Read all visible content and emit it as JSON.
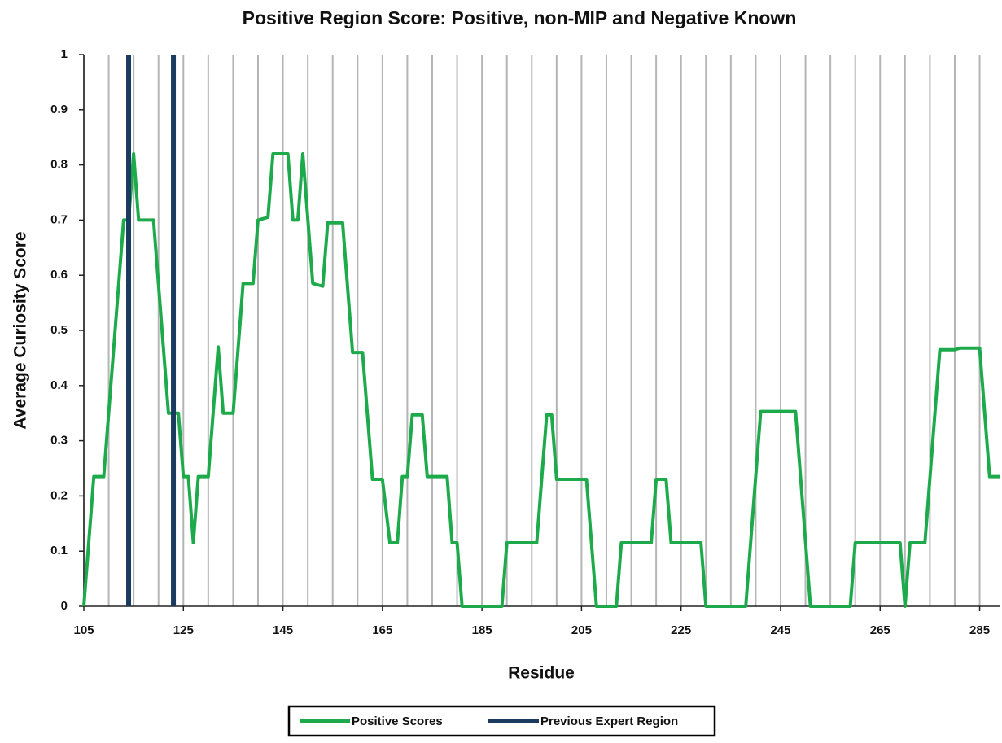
{
  "chart_data": {
    "type": "line",
    "title": "Positive Region Score: Positive, non-MIP and Negative Known",
    "x_label": "Residue",
    "y_label": "Average Curiosity Score",
    "xlim": [
      105,
      289
    ],
    "xticks": [
      105,
      125,
      145,
      165,
      185,
      205,
      225,
      245,
      265,
      285
    ],
    "x_grid": [
      105,
      110,
      115,
      120,
      125,
      130,
      135,
      140,
      145,
      150,
      155,
      160,
      165,
      170,
      175,
      180,
      185,
      190,
      195,
      200,
      205,
      210,
      215,
      220,
      225,
      230,
      235,
      240,
      245,
      250,
      255,
      260,
      265,
      270,
      275,
      280,
      285
    ],
    "ylim": [
      0,
      1
    ],
    "yticks": [
      0,
      0.1,
      0.2,
      0.3,
      0.4,
      0.5,
      0.6,
      0.7,
      0.8,
      0.9,
      1
    ],
    "grid": true,
    "legend": "bottom",
    "series": [
      {
        "name": "Positive Scores",
        "color": "#1daa4b",
        "x": [
          105,
          107,
          109,
          113,
          114,
          115,
          116,
          119,
          122,
          124,
          125,
          126,
          127,
          128,
          130,
          132,
          133,
          135,
          137,
          139,
          140,
          142,
          143,
          146,
          147,
          148,
          149,
          151,
          153,
          154,
          157,
          159,
          161,
          163,
          165,
          166.5,
          168,
          169,
          170,
          171,
          173,
          174,
          178,
          179,
          180,
          181,
          189,
          190,
          196,
          198,
          199,
          200,
          206,
          208,
          212,
          213,
          219,
          220,
          222,
          223,
          229,
          230,
          238,
          241,
          248,
          251,
          259,
          260,
          269,
          270,
          271,
          274,
          277,
          280,
          281,
          285,
          287,
          289
        ],
        "values": [
          0,
          0.235,
          0.235,
          0.7,
          0.7,
          0.82,
          0.7,
          0.7,
          0.35,
          0.35,
          0.235,
          0.235,
          0.115,
          0.235,
          0.235,
          0.47,
          0.35,
          0.35,
          0.585,
          0.585,
          0.7,
          0.705,
          0.82,
          0.82,
          0.7,
          0.7,
          0.82,
          0.585,
          0.58,
          0.695,
          0.695,
          0.46,
          0.46,
          0.23,
          0.23,
          0.115,
          0.115,
          0.235,
          0.235,
          0.347,
          0.347,
          0.235,
          0.235,
          0.115,
          0.115,
          0,
          0,
          0.115,
          0.115,
          0.347,
          0.347,
          0.23,
          0.23,
          0,
          0,
          0.115,
          0.115,
          0.23,
          0.23,
          0.115,
          0.115,
          0,
          0,
          0.353,
          0.353,
          0,
          0,
          0.115,
          0.115,
          0,
          0.115,
          0.115,
          0.465,
          0.465,
          0.468,
          0.468,
          0.235,
          0.235
        ]
      },
      {
        "name": "Previous Expert Region",
        "color": "#1b3a60",
        "x": [
          114,
          114,
          null,
          123,
          123
        ],
        "values": [
          0,
          1,
          null,
          0,
          1
        ]
      }
    ]
  }
}
